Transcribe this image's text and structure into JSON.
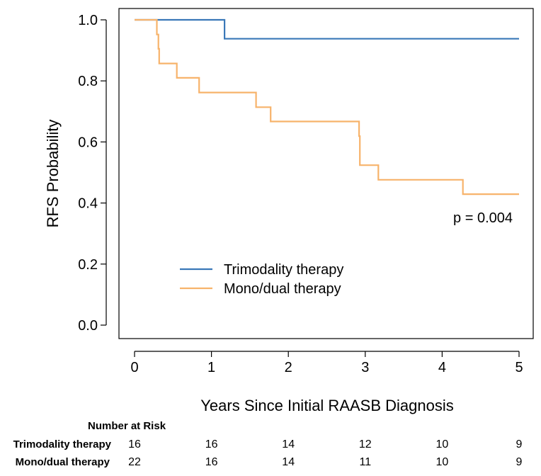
{
  "chart_data": {
    "type": "line",
    "step": true,
    "xlabel": "Years Since Initial RAASB Diagnosis",
    "ylabel": "RFS Probability",
    "xlim": [
      0,
      5
    ],
    "ylim": [
      0,
      1
    ],
    "x_ticks": [
      "0",
      "1",
      "2",
      "3",
      "4",
      "5"
    ],
    "y_ticks": [
      "0.0",
      "0.2",
      "0.4",
      "0.6",
      "0.8",
      "1.0"
    ],
    "grid": false,
    "legend_position": "lower-left",
    "annotation": "p = 0.004",
    "series": [
      {
        "name": "Trimodality therapy",
        "color": "#3a78b8",
        "points": [
          [
            0,
            1.0
          ],
          [
            1.17,
            1.0
          ],
          [
            1.17,
            0.938
          ],
          [
            5.0,
            0.938
          ]
        ]
      },
      {
        "name": "Mono/dual therapy",
        "color": "#f7b36b",
        "points": [
          [
            0,
            1.0
          ],
          [
            0.29,
            1.0
          ],
          [
            0.29,
            0.952
          ],
          [
            0.31,
            0.952
          ],
          [
            0.31,
            0.905
          ],
          [
            0.32,
            0.905
          ],
          [
            0.32,
            0.857
          ],
          [
            0.55,
            0.857
          ],
          [
            0.55,
            0.81
          ],
          [
            0.84,
            0.81
          ],
          [
            0.84,
            0.762
          ],
          [
            1.58,
            0.762
          ],
          [
            1.58,
            0.714
          ],
          [
            1.77,
            0.714
          ],
          [
            1.77,
            0.667
          ],
          [
            2.92,
            0.667
          ],
          [
            2.92,
            0.619
          ],
          [
            2.93,
            0.619
          ],
          [
            2.93,
            0.524
          ],
          [
            3.17,
            0.524
          ],
          [
            3.17,
            0.476
          ],
          [
            4.27,
            0.476
          ],
          [
            4.27,
            0.429
          ],
          [
            5.0,
            0.429
          ]
        ]
      }
    ]
  },
  "risk_table": {
    "title": "Number at Risk",
    "times": [
      0,
      1,
      2,
      3,
      4,
      5
    ],
    "rows": [
      {
        "label": "Trimodality therapy",
        "values": [
          "16",
          "16",
          "14",
          "12",
          "10",
          "9"
        ]
      },
      {
        "label": "Mono/dual therapy",
        "values": [
          "22",
          "16",
          "14",
          "11",
          "10",
          "9"
        ]
      }
    ]
  }
}
